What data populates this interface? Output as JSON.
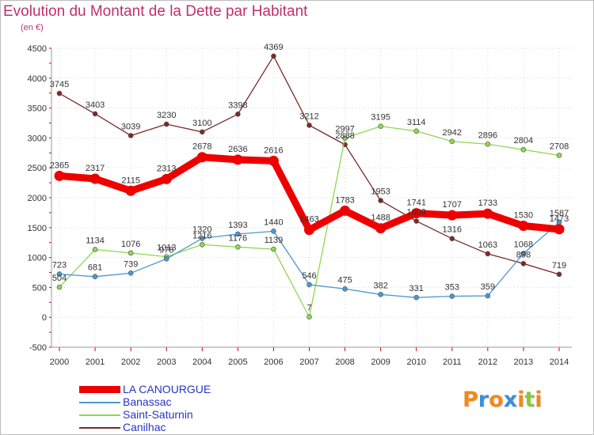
{
  "header": {
    "title": "Evolution du Montant de la Dette par Habitant",
    "subtitle": "(en €)"
  },
  "logo": {
    "letters": [
      "P",
      "r",
      "o",
      "x",
      "i",
      "t",
      "i"
    ],
    "colors": [
      "#f08a1c",
      "#3c8fd8",
      "#f08a1c",
      "#3c8fd8",
      "#f08a1c",
      "#8cc63f",
      "#f08a1c"
    ]
  },
  "chart_data": {
    "type": "line",
    "x": [
      "2000",
      "2001",
      "2002",
      "2003",
      "2004",
      "2005",
      "2006",
      "2007",
      "2008",
      "2009",
      "2010",
      "2011",
      "2012",
      "2013",
      "2014"
    ],
    "ylim": [
      -500,
      4500
    ],
    "yticks": [
      "-500",
      "0",
      "500",
      "1000",
      "1500",
      "2000",
      "2500",
      "3000",
      "3500",
      "4000",
      "4500"
    ],
    "grid": true,
    "legend_position": "bottom-left",
    "series": [
      {
        "name": "LA CANOURGUE",
        "color": "#ee0000",
        "values": [
          2365,
          2317,
          2115,
          2313,
          2678,
          2636,
          2616,
          1463,
          1783,
          1488,
          1741,
          1707,
          1733,
          1530,
          1473
        ],
        "labels": [
          "2365",
          "2317",
          "2115",
          "2313",
          "2678",
          "2636",
          "2616",
          "1463",
          "1783",
          "1488",
          "1741",
          "1707",
          "1733",
          "1530",
          "1473"
        ]
      },
      {
        "name": "Banassac",
        "color": "#4b98cf",
        "values": [
          723,
          681,
          739,
          978,
          1320,
          1393,
          1440,
          546,
          475,
          382,
          331,
          353,
          359,
          1068,
          1587
        ],
        "labels": [
          "723",
          "681",
          "739",
          "978",
          "1320",
          "1393",
          "1440",
          "546",
          "475",
          "382",
          "331",
          "353",
          "359",
          "1068",
          "1587"
        ]
      },
      {
        "name": "Saint-Saturnin",
        "color": "#8fd64f",
        "values": [
          504,
          1134,
          1076,
          1013,
          1216,
          1176,
          1139,
          7,
          2997,
          3195,
          3114,
          2942,
          2896,
          2804,
          2708
        ],
        "labels": [
          "504",
          "1134",
          "1076",
          "1013",
          "1216",
          "1176",
          "1139",
          "7",
          "2997",
          "3195",
          "3114",
          "2942",
          "2896",
          "2804",
          "2708"
        ]
      },
      {
        "name": "Canilhac",
        "color": "#7a2a2a",
        "values": [
          3745,
          3403,
          3039,
          3230,
          3100,
          3398,
          4369,
          3212,
          2888,
          1953,
          1609,
          1316,
          1063,
          898,
          719
        ],
        "labels": [
          "3745",
          "3403",
          "3039",
          "3230",
          "3100",
          "3398",
          "4369",
          "3212",
          "2888",
          "1953",
          "1609",
          "1316",
          "1063",
          "898",
          "719"
        ]
      }
    ]
  }
}
